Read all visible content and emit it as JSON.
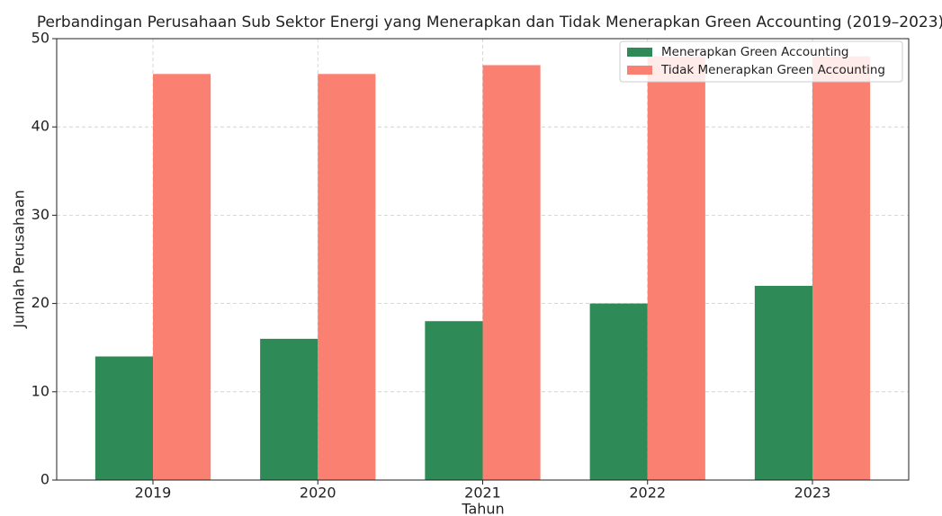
{
  "chart_data": {
    "type": "bar",
    "title": "Perbandingan Perusahaan Sub Sektor Energi yang Menerapkan dan Tidak Menerapkan Green Accounting (2019–2023)",
    "xlabel": "Tahun",
    "ylabel": "Jumlah Perusahaan",
    "categories": [
      "2019",
      "2020",
      "2021",
      "2022",
      "2023"
    ],
    "series": [
      {
        "name": "Menerapkan Green Accounting",
        "color": "#2e8b57",
        "values": [
          14,
          16,
          18,
          20,
          22
        ]
      },
      {
        "name": "Tidak Menerapkan Green Accounting",
        "color": "#fa8072",
        "values": [
          46,
          46,
          47,
          48,
          48
        ]
      }
    ],
    "ylim": [
      0,
      50
    ],
    "yticks": [
      0,
      10,
      20,
      30,
      40,
      50
    ],
    "grid": true,
    "legend": "upper right"
  }
}
